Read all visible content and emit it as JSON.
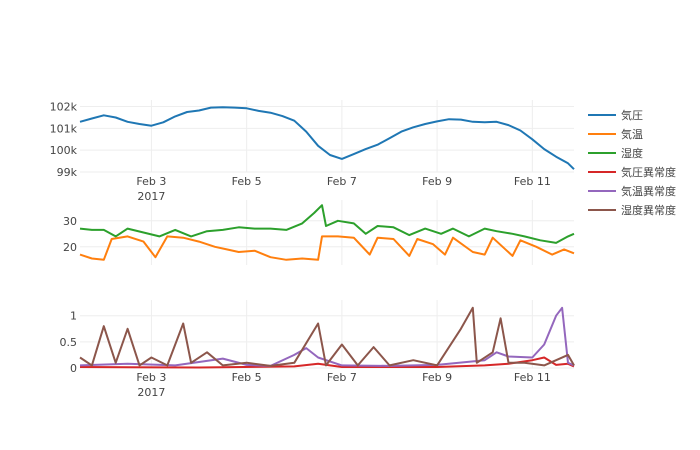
{
  "chart_data": {
    "type": "line",
    "x_tick_labels": [
      "Feb 3",
      "Feb 5",
      "Feb 7",
      "Feb 9",
      "Feb 11"
    ],
    "x_tick_values": [
      "2017-02-03",
      "2017-02-05",
      "2017-02-07",
      "2017-02-09",
      "2017-02-11"
    ],
    "x_year_label": "2017",
    "xlim": [
      "2017-02-01T12:00",
      "2017-02-11T21:00"
    ],
    "legend": {
      "position": "right",
      "entries": [
        "気圧",
        "気温",
        "湿度",
        "気圧異常度",
        "気温異常度",
        "湿度異常度"
      ]
    },
    "panels": [
      {
        "ylim": [
          99000,
          102300
        ],
        "y_ticks": [
          {
            "value": 99000,
            "label": "99k"
          },
          {
            "value": 100000,
            "label": "100k"
          },
          {
            "value": 101000,
            "label": "101k"
          },
          {
            "value": 102000,
            "label": "102k"
          }
        ],
        "series": [
          {
            "name": "気圧",
            "color": "#1f77b4",
            "points": [
              [
                "2017-02-01T12:00",
                101300
              ],
              [
                "2017-02-01T18:00",
                101450
              ],
              [
                "2017-02-02T00:00",
                101600
              ],
              [
                "2017-02-02T06:00",
                101500
              ],
              [
                "2017-02-02T12:00",
                101300
              ],
              [
                "2017-02-02T18:00",
                101200
              ],
              [
                "2017-02-03T00:00",
                101120
              ],
              [
                "2017-02-03T06:00",
                101280
              ],
              [
                "2017-02-03T12:00",
                101550
              ],
              [
                "2017-02-03T18:00",
                101750
              ],
              [
                "2017-02-04T00:00",
                101820
              ],
              [
                "2017-02-04T06:00",
                101950
              ],
              [
                "2017-02-04T12:00",
                101970
              ],
              [
                "2017-02-04T18:00",
                101950
              ],
              [
                "2017-02-05T00:00",
                101920
              ],
              [
                "2017-02-05T06:00",
                101800
              ],
              [
                "2017-02-05T12:00",
                101720
              ],
              [
                "2017-02-05T18:00",
                101560
              ],
              [
                "2017-02-06T00:00",
                101350
              ],
              [
                "2017-02-06T06:00",
                100850
              ],
              [
                "2017-02-06T12:00",
                100200
              ],
              [
                "2017-02-06T18:00",
                99780
              ],
              [
                "2017-02-07T00:00",
                99600
              ],
              [
                "2017-02-07T06:00",
                99820
              ],
              [
                "2017-02-07T12:00",
                100050
              ],
              [
                "2017-02-07T18:00",
                100250
              ],
              [
                "2017-02-08T00:00",
                100550
              ],
              [
                "2017-02-08T06:00",
                100850
              ],
              [
                "2017-02-08T12:00",
                101050
              ],
              [
                "2017-02-08T18:00",
                101200
              ],
              [
                "2017-02-09T00:00",
                101320
              ],
              [
                "2017-02-09T06:00",
                101420
              ],
              [
                "2017-02-09T12:00",
                101400
              ],
              [
                "2017-02-09T18:00",
                101300
              ],
              [
                "2017-02-10T00:00",
                101280
              ],
              [
                "2017-02-10T06:00",
                101300
              ],
              [
                "2017-02-10T12:00",
                101150
              ],
              [
                "2017-02-10T18:00",
                100900
              ],
              [
                "2017-02-11T00:00",
                100500
              ],
              [
                "2017-02-11T06:00",
                100050
              ],
              [
                "2017-02-11T12:00",
                99700
              ],
              [
                "2017-02-11T18:00",
                99400
              ],
              [
                "2017-02-11T21:00",
                99130
              ]
            ]
          },
          {
            "name": "気温",
            "color": "#ff7f0e",
            "points": []
          },
          {
            "name": "湿度",
            "color": "#2ca02c",
            "points": []
          }
        ]
      },
      {
        "ylim": [
          13,
          38
        ],
        "y_ticks": [
          {
            "value": 20,
            "label": "20"
          },
          {
            "value": 30,
            "label": "30"
          }
        ],
        "series": [
          {
            "name": "気温",
            "color": "#ff7f0e",
            "points": [
              [
                "2017-02-01T12:00",
                17
              ],
              [
                "2017-02-01T18:00",
                15.5
              ],
              [
                "2017-02-02T00:00",
                15
              ],
              [
                "2017-02-02T04:00",
                23
              ],
              [
                "2017-02-02T12:00",
                24
              ],
              [
                "2017-02-02T20:00",
                22
              ],
              [
                "2017-02-03T02:00",
                16
              ],
              [
                "2017-02-03T08:00",
                24
              ],
              [
                "2017-02-03T16:00",
                23.5
              ],
              [
                "2017-02-04T00:00",
                22
              ],
              [
                "2017-02-04T08:00",
                20
              ],
              [
                "2017-02-04T14:00",
                19
              ],
              [
                "2017-02-04T20:00",
                18
              ],
              [
                "2017-02-05T04:00",
                18.5
              ],
              [
                "2017-02-05T12:00",
                16
              ],
              [
                "2017-02-05T20:00",
                15
              ],
              [
                "2017-02-06T04:00",
                15.5
              ],
              [
                "2017-02-06T12:00",
                15
              ],
              [
                "2017-02-06T14:00",
                24
              ],
              [
                "2017-02-06T22:00",
                24
              ],
              [
                "2017-02-07T06:00",
                23.5
              ],
              [
                "2017-02-07T14:00",
                17
              ],
              [
                "2017-02-07T18:00",
                23.5
              ],
              [
                "2017-02-08T02:00",
                23
              ],
              [
                "2017-02-08T10:00",
                16.5
              ],
              [
                "2017-02-08T14:00",
                23
              ],
              [
                "2017-02-08T22:00",
                21
              ],
              [
                "2017-02-09T04:00",
                17
              ],
              [
                "2017-02-09T08:00",
                23.5
              ],
              [
                "2017-02-09T18:00",
                18
              ],
              [
                "2017-02-10T00:00",
                17
              ],
              [
                "2017-02-10T04:00",
                23.5
              ],
              [
                "2017-02-10T14:00",
                16.5
              ],
              [
                "2017-02-10T18:00",
                22.5
              ],
              [
                "2017-02-11T02:00",
                20
              ],
              [
                "2017-02-11T10:00",
                17
              ],
              [
                "2017-02-11T16:00",
                19
              ],
              [
                "2017-02-11T21:00",
                17.5
              ]
            ]
          },
          {
            "name": "湿度",
            "color": "#2ca02c",
            "points": [
              [
                "2017-02-01T12:00",
                27
              ],
              [
                "2017-02-01T18:00",
                26.5
              ],
              [
                "2017-02-02T00:00",
                26.5
              ],
              [
                "2017-02-02T06:00",
                24
              ],
              [
                "2017-02-02T12:00",
                27
              ],
              [
                "2017-02-02T20:00",
                25.5
              ],
              [
                "2017-02-03T04:00",
                24
              ],
              [
                "2017-02-03T12:00",
                26.5
              ],
              [
                "2017-02-03T20:00",
                24
              ],
              [
                "2017-02-04T04:00",
                26
              ],
              [
                "2017-02-04T12:00",
                26.5
              ],
              [
                "2017-02-04T20:00",
                27.5
              ],
              [
                "2017-02-05T04:00",
                27
              ],
              [
                "2017-02-05T12:00",
                27
              ],
              [
                "2017-02-05T20:00",
                26.5
              ],
              [
                "2017-02-06T04:00",
                29
              ],
              [
                "2017-02-06T10:00",
                33
              ],
              [
                "2017-02-06T14:00",
                36
              ],
              [
                "2017-02-06T16:00",
                28
              ],
              [
                "2017-02-06T22:00",
                30
              ],
              [
                "2017-02-07T06:00",
                29
              ],
              [
                "2017-02-07T12:00",
                25
              ],
              [
                "2017-02-07T18:00",
                28
              ],
              [
                "2017-02-08T02:00",
                27.5
              ],
              [
                "2017-02-08T10:00",
                24.5
              ],
              [
                "2017-02-08T18:00",
                27
              ],
              [
                "2017-02-09T02:00",
                25
              ],
              [
                "2017-02-09T08:00",
                27
              ],
              [
                "2017-02-09T16:00",
                24
              ],
              [
                "2017-02-10T00:00",
                27
              ],
              [
                "2017-02-10T06:00",
                26
              ],
              [
                "2017-02-10T14:00",
                25
              ],
              [
                "2017-02-10T20:00",
                24
              ],
              [
                "2017-02-11T04:00",
                22.5
              ],
              [
                "2017-02-11T12:00",
                21.5
              ],
              [
                "2017-02-11T18:00",
                24
              ],
              [
                "2017-02-11T21:00",
                25
              ]
            ]
          }
        ]
      },
      {
        "ylim": [
          0,
          1.3
        ],
        "y_ticks": [
          {
            "value": 0,
            "label": "0"
          },
          {
            "value": 0.5,
            "label": "0.5"
          },
          {
            "value": 1,
            "label": "1"
          }
        ],
        "series": [
          {
            "name": "気圧異常度",
            "color": "#d62728",
            "points": [
              [
                "2017-02-01T12:00",
                0.02
              ],
              [
                "2017-02-04T00:00",
                0.01
              ],
              [
                "2017-02-06T00:00",
                0.03
              ],
              [
                "2017-02-06T12:00",
                0.08
              ],
              [
                "2017-02-07T00:00",
                0.02
              ],
              [
                "2017-02-09T00:00",
                0.02
              ],
              [
                "2017-02-10T00:00",
                0.05
              ],
              [
                "2017-02-10T12:00",
                0.08
              ],
              [
                "2017-02-11T00:00",
                0.15
              ],
              [
                "2017-02-11T06:00",
                0.2
              ],
              [
                "2017-02-11T12:00",
                0.06
              ],
              [
                "2017-02-11T18:00",
                0.08
              ],
              [
                "2017-02-11T21:00",
                0.03
              ]
            ]
          },
          {
            "name": "気温異常度",
            "color": "#9467bd",
            "points": [
              [
                "2017-02-01T12:00",
                0.05
              ],
              [
                "2017-02-02T12:00",
                0.08
              ],
              [
                "2017-02-03T12:00",
                0.05
              ],
              [
                "2017-02-04T12:00",
                0.18
              ],
              [
                "2017-02-05T00:00",
                0.06
              ],
              [
                "2017-02-05T12:00",
                0.04
              ],
              [
                "2017-02-06T00:00",
                0.25
              ],
              [
                "2017-02-06T06:00",
                0.38
              ],
              [
                "2017-02-06T12:00",
                0.2
              ],
              [
                "2017-02-07T00:00",
                0.05
              ],
              [
                "2017-02-08T00:00",
                0.04
              ],
              [
                "2017-02-09T00:00",
                0.06
              ],
              [
                "2017-02-10T00:00",
                0.15
              ],
              [
                "2017-02-10T06:00",
                0.3
              ],
              [
                "2017-02-10T12:00",
                0.22
              ],
              [
                "2017-02-11T00:00",
                0.2
              ],
              [
                "2017-02-11T06:00",
                0.45
              ],
              [
                "2017-02-11T12:00",
                1.0
              ],
              [
                "2017-02-11T15:00",
                1.15
              ],
              [
                "2017-02-11T18:00",
                0.1
              ],
              [
                "2017-02-11T21:00",
                0.05
              ]
            ]
          },
          {
            "name": "湿度異常度",
            "color": "#8c564b",
            "points": [
              [
                "2017-02-01T12:00",
                0.2
              ],
              [
                "2017-02-01T18:00",
                0.05
              ],
              [
                "2017-02-02T00:00",
                0.8
              ],
              [
                "2017-02-02T06:00",
                0.1
              ],
              [
                "2017-02-02T12:00",
                0.75
              ],
              [
                "2017-02-02T18:00",
                0.05
              ],
              [
                "2017-02-03T00:00",
                0.2
              ],
              [
                "2017-02-03T08:00",
                0.05
              ],
              [
                "2017-02-03T16:00",
                0.85
              ],
              [
                "2017-02-03T20:00",
                0.1
              ],
              [
                "2017-02-04T04:00",
                0.3
              ],
              [
                "2017-02-04T12:00",
                0.05
              ],
              [
                "2017-02-05T00:00",
                0.1
              ],
              [
                "2017-02-05T12:00",
                0.04
              ],
              [
                "2017-02-06T00:00",
                0.1
              ],
              [
                "2017-02-06T12:00",
                0.85
              ],
              [
                "2017-02-06T16:00",
                0.05
              ],
              [
                "2017-02-07T00:00",
                0.45
              ],
              [
                "2017-02-07T08:00",
                0.05
              ],
              [
                "2017-02-07T16:00",
                0.4
              ],
              [
                "2017-02-08T00:00",
                0.05
              ],
              [
                "2017-02-08T12:00",
                0.15
              ],
              [
                "2017-02-09T00:00",
                0.05
              ],
              [
                "2017-02-09T12:00",
                0.75
              ],
              [
                "2017-02-09T18:00",
                1.15
              ],
              [
                "2017-02-09T20:00",
                0.1
              ],
              [
                "2017-02-10T04:00",
                0.3
              ],
              [
                "2017-02-10T08:00",
                0.95
              ],
              [
                "2017-02-10T12:00",
                0.1
              ],
              [
                "2017-02-10T20:00",
                0.1
              ],
              [
                "2017-02-11T06:00",
                0.05
              ],
              [
                "2017-02-11T18:00",
                0.25
              ],
              [
                "2017-02-11T21:00",
                0.05
              ]
            ]
          }
        ]
      }
    ],
    "grid": true
  }
}
